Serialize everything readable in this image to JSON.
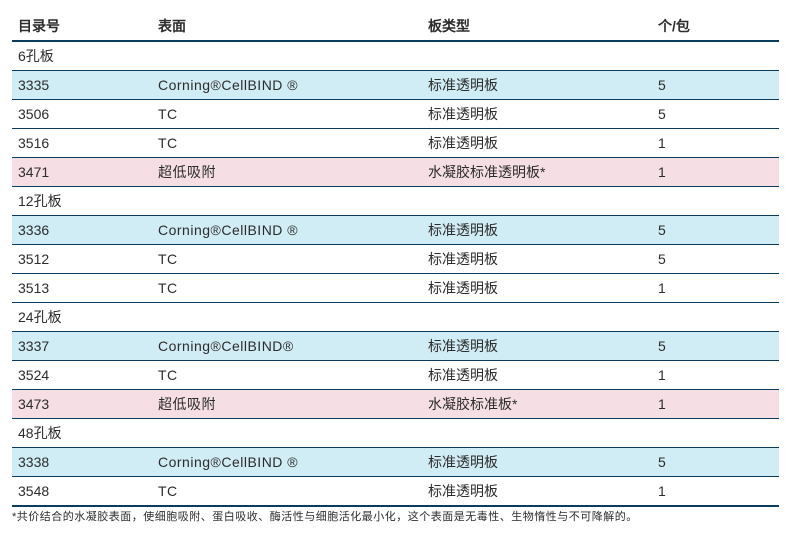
{
  "columns": {
    "col1": "目录号",
    "col2": "表面",
    "col3": "板类型",
    "col4": "个/包"
  },
  "sections": [
    {
      "title": "6孔板",
      "rows": [
        {
          "cls": "blue",
          "c1": "3335",
          "c2": "Corning®CellBIND ®",
          "c3": "标准透明板",
          "c4": "5"
        },
        {
          "cls": "white",
          "c1": "3506",
          "c2": "TC",
          "c3": "标准透明板",
          "c4": "5"
        },
        {
          "cls": "white",
          "c1": "3516",
          "c2": "TC",
          "c3": "标准透明板",
          "c4": "1"
        },
        {
          "cls": "pink",
          "c1": "3471",
          "c2": "超低吸附",
          "c3": "水凝胶标准透明板*",
          "c4": "1"
        }
      ]
    },
    {
      "title": "12孔板",
      "rows": [
        {
          "cls": "blue",
          "c1": "3336",
          "c2": "Corning®CellBIND ®",
          "c3": "标准透明板",
          "c4": "5"
        },
        {
          "cls": "white",
          "c1": "3512",
          "c2": "TC",
          "c3": "标准透明板",
          "c4": "5"
        },
        {
          "cls": "white",
          "c1": "3513",
          "c2": "TC",
          "c3": "标准透明板",
          "c4": "1"
        }
      ]
    },
    {
      "title": "24孔板",
      "rows": [
        {
          "cls": "blue",
          "c1": "3337",
          "c2": "Corning®CellBIND®",
          "c3": "标准透明板",
          "c4": "5"
        },
        {
          "cls": "white",
          "c1": "3524",
          "c2": "TC",
          "c3": "标准透明板",
          "c4": "1"
        },
        {
          "cls": "pink",
          "c1": "3473",
          "c2": "超低吸附",
          "c3": "水凝胶标准板*",
          "c4": "1"
        }
      ]
    },
    {
      "title": "48孔板",
      "rows": [
        {
          "cls": "blue",
          "c1": "3338",
          "c2": "Corning®CellBIND ®",
          "c3": "标准透明板",
          "c4": "5"
        },
        {
          "cls": "white",
          "c1": "3548",
          "c2": "TC",
          "c3": "标准透明板",
          "c4": "1"
        }
      ]
    }
  ],
  "footnote": "*共价结合的水凝胶表面，使细胞吸附、蛋白吸收、酶活性与细胞活化最小化，这个表面是无毒性、生物惰性与不可降解的。"
}
